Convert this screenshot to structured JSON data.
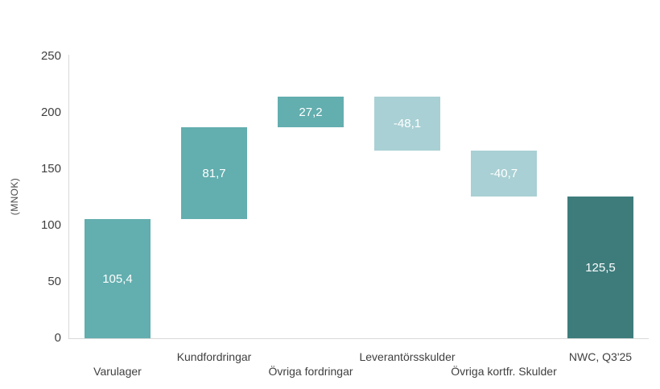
{
  "chart_data": {
    "type": "bar",
    "subtype": "waterfall",
    "title": "",
    "xlabel": "",
    "ylabel": "(MNOK)",
    "ylim": [
      0,
      250
    ],
    "yticks": [
      0,
      50,
      100,
      150,
      200,
      250
    ],
    "grid": false,
    "legend_position": "none",
    "categories": [
      "Varulager",
      "Kundfordringar",
      "Övriga fordringar",
      "Leverantörsskulder",
      "Övriga kortfr. Skulder",
      "NWC, Q3'25"
    ],
    "values": [
      105.4,
      81.7,
      27.2,
      -48.1,
      -40.7,
      125.5
    ],
    "segments": [
      {
        "category": "Varulager",
        "value": 105.4,
        "value_label": "105,4",
        "start": 0,
        "end": 105.4,
        "role": "increase"
      },
      {
        "category": "Kundfordringar",
        "value": 81.7,
        "value_label": "81,7",
        "start": 105.4,
        "end": 187.1,
        "role": "increase"
      },
      {
        "category": "Övriga fordringar",
        "value": 27.2,
        "value_label": "27,2",
        "start": 187.1,
        "end": 214.3,
        "role": "increase"
      },
      {
        "category": "Leverantörsskulder",
        "value": -48.1,
        "value_label": "-48,1",
        "start": 214.3,
        "end": 166.2,
        "role": "decrease"
      },
      {
        "category": "Övriga kortfr. Skulder",
        "value": -40.7,
        "value_label": "-40,7",
        "start": 166.2,
        "end": 125.5,
        "role": "decrease"
      },
      {
        "category": "NWC, Q3'25",
        "value": 125.5,
        "value_label": "125,5",
        "start": 0,
        "end": 125.5,
        "role": "total"
      }
    ],
    "colors": {
      "increase": "#63aeaf",
      "decrease": "#a9d0d4",
      "total": "#3e7c7c",
      "axis_line": "#d9d9d9",
      "tick_text": "#404040",
      "bar_label_text": "#ffffff"
    }
  }
}
